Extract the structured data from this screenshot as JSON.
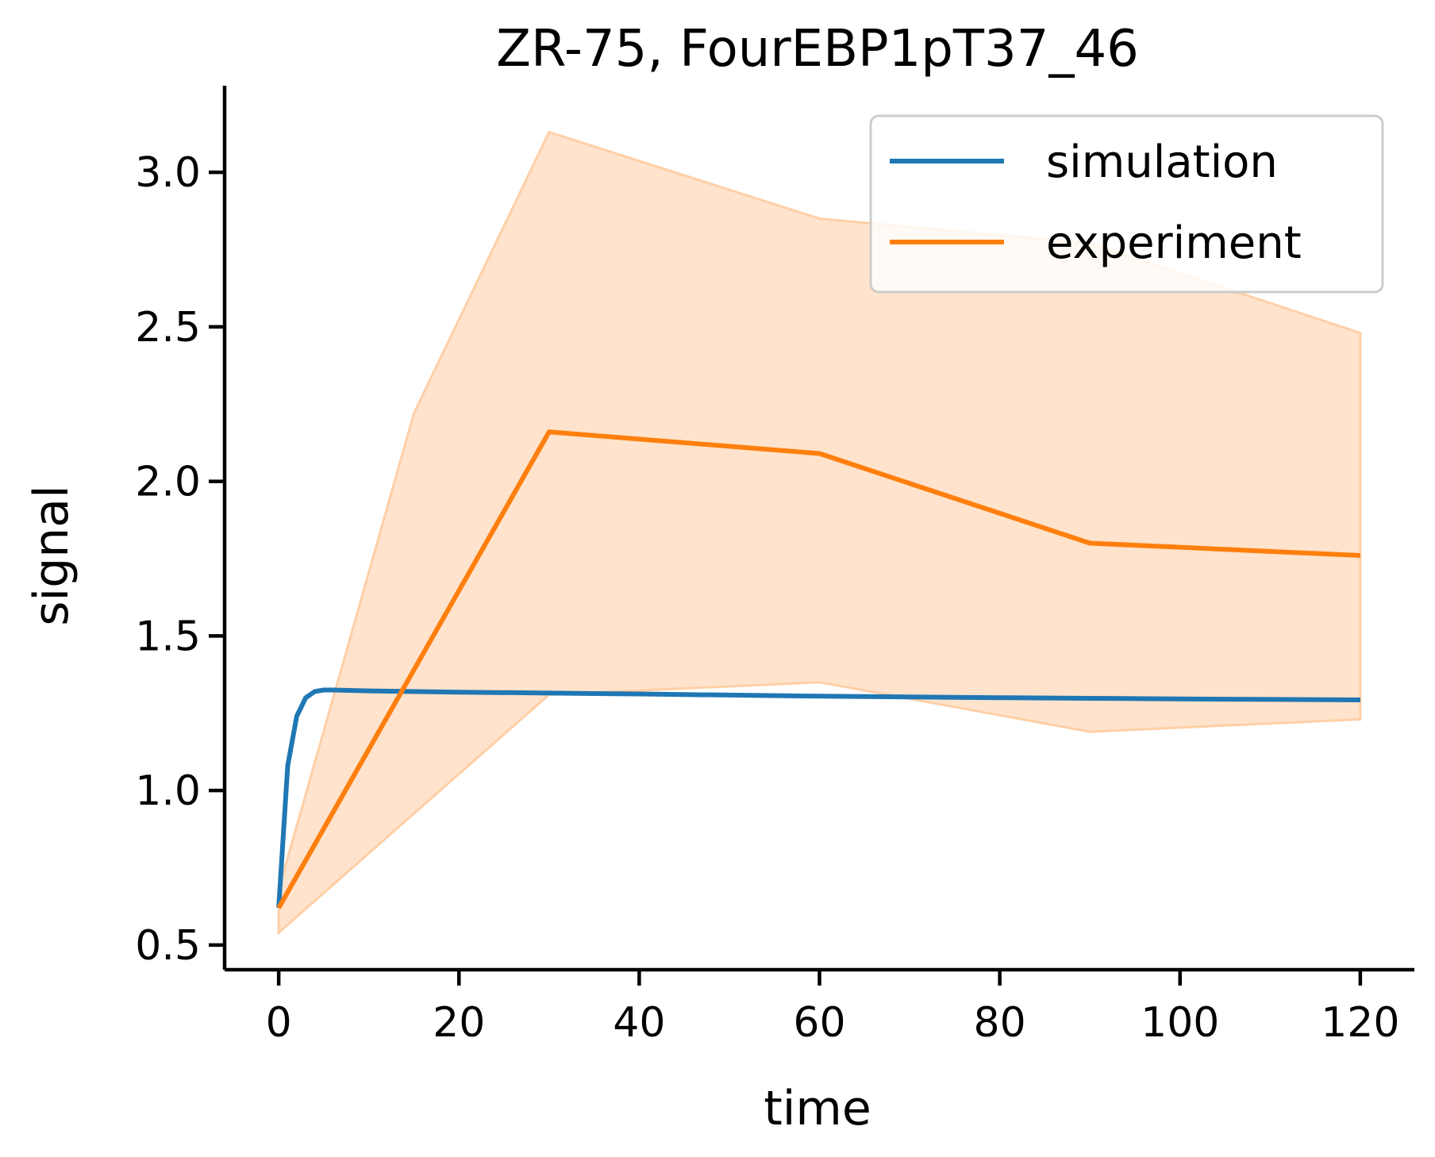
{
  "chart_data": {
    "type": "line",
    "title": "ZR-75, FourEBP1pT37_46",
    "xlabel": "time",
    "ylabel": "signal",
    "xlim": [
      -6,
      126
    ],
    "ylim": [
      0.42,
      3.28
    ],
    "x_ticks": [
      0,
      20,
      40,
      60,
      80,
      100,
      120
    ],
    "x_tick_labels": [
      "0",
      "20",
      "40",
      "60",
      "80",
      "100",
      "120"
    ],
    "y_ticks": [
      0.5,
      1.0,
      1.5,
      2.0,
      2.5,
      3.0
    ],
    "y_tick_labels": [
      "0.5",
      "1.0",
      "1.5",
      "2.0",
      "2.5",
      "3.0"
    ],
    "grid": false,
    "legend_position": "top-right",
    "series": [
      {
        "name": "simulation",
        "color": "#1f77b4",
        "x": [
          0,
          1,
          2,
          3,
          4,
          5,
          6,
          10,
          20,
          30,
          40,
          60,
          80,
          90,
          100,
          120
        ],
        "y": [
          0.62,
          1.08,
          1.24,
          1.3,
          1.32,
          1.325,
          1.325,
          1.322,
          1.318,
          1.315,
          1.312,
          1.305,
          1.3,
          1.298,
          1.296,
          1.293
        ]
      },
      {
        "name": "experiment",
        "color": "#ff7f0e",
        "x": [
          0,
          30,
          60,
          90,
          120
        ],
        "y": [
          0.62,
          2.16,
          2.09,
          1.8,
          1.76
        ],
        "band_color": "#ffe3cc",
        "band_edge_color": "#ffcfa6",
        "band_upper_x": [
          0,
          8,
          15,
          30,
          60,
          90,
          120
        ],
        "band_upper_y": [
          0.68,
          1.5,
          2.22,
          3.13,
          2.85,
          2.77,
          2.48
        ],
        "band_lower_x": [
          0,
          30,
          60,
          90,
          120
        ],
        "band_lower_y": [
          0.54,
          1.31,
          1.35,
          1.19,
          1.23
        ]
      }
    ]
  }
}
